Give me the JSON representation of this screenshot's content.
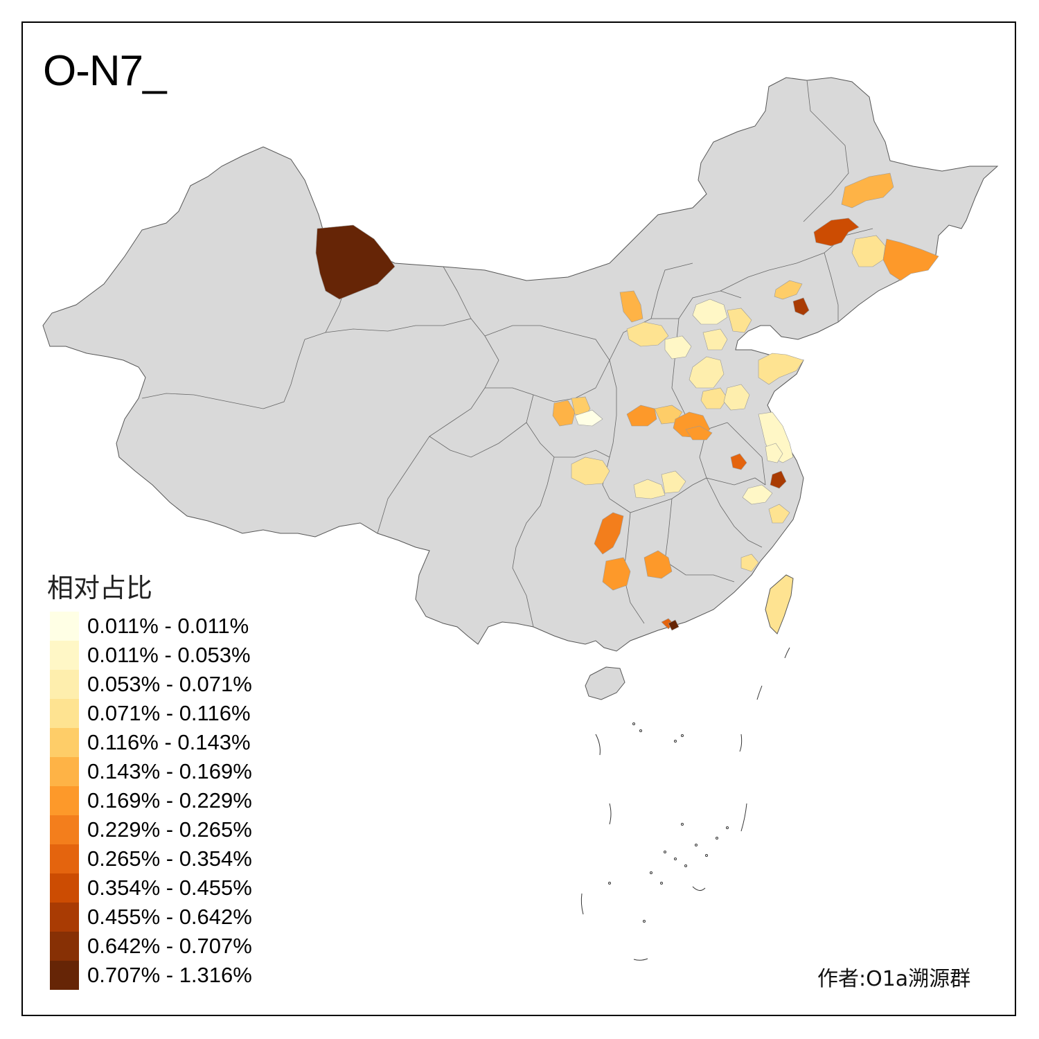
{
  "map": {
    "title": "O-N7_",
    "legend_title": "相对占比",
    "author": "作者:O1a溯源群",
    "base_color": "#d9d9d9",
    "legend": [
      {
        "label": "0.011% - 0.011%",
        "color": "#ffffe5"
      },
      {
        "label": "0.011% - 0.053%",
        "color": "#fff7c6"
      },
      {
        "label": "0.053% - 0.071%",
        "color": "#feeead"
      },
      {
        "label": "0.071% - 0.116%",
        "color": "#fee391"
      },
      {
        "label": "0.116% - 0.143%",
        "color": "#fecd68"
      },
      {
        "label": "0.143% - 0.169%",
        "color": "#feb346"
      },
      {
        "label": "0.169% - 0.229%",
        "color": "#fd992a"
      },
      {
        "label": "0.229% - 0.265%",
        "color": "#f37e1c"
      },
      {
        "label": "0.265% - 0.354%",
        "color": "#e4640e"
      },
      {
        "label": "0.354% - 0.455%",
        "color": "#cc4c02"
      },
      {
        "label": "0.455% - 0.642%",
        "color": "#a93b03"
      },
      {
        "label": "0.642% - 0.707%",
        "color": "#873005"
      },
      {
        "label": "0.707% - 1.316%",
        "color": "#662506"
      }
    ]
  }
}
